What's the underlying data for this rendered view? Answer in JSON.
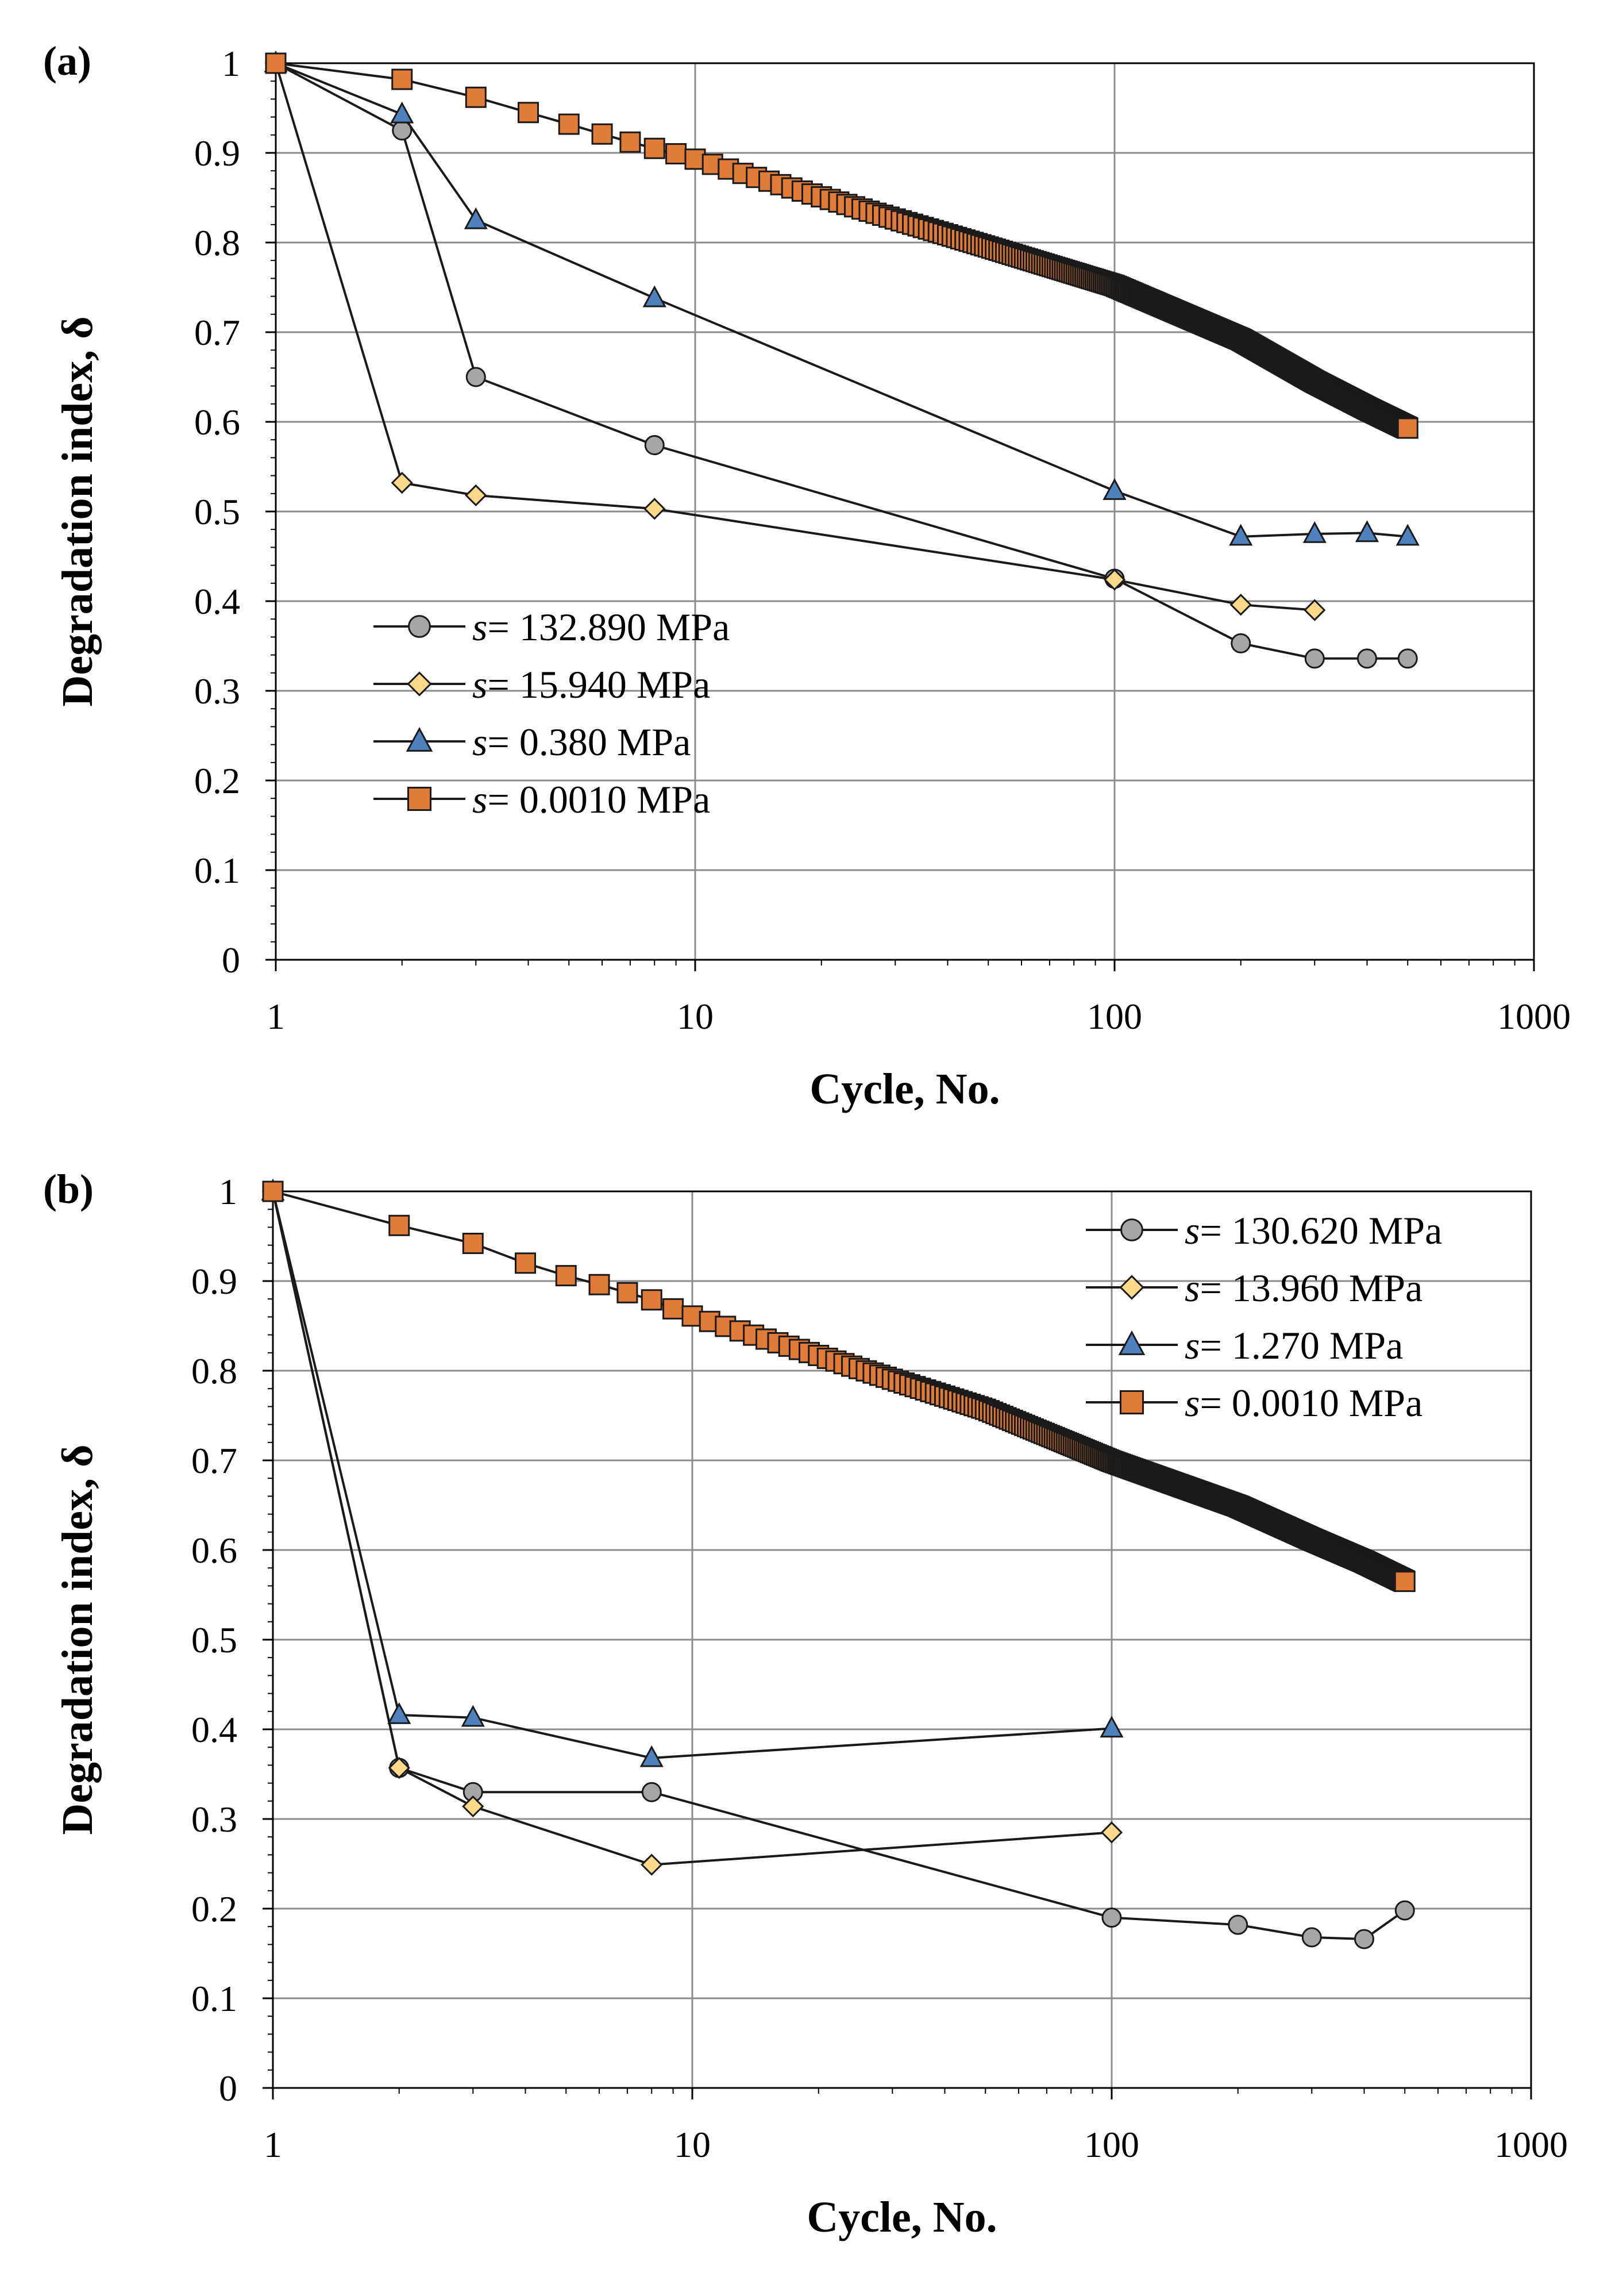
{
  "figure": {
    "colors": {
      "grid": "#8c8c8c",
      "axis": "#000000",
      "line": "#1a1a1a",
      "circle": "#a6a6a6",
      "diamond": "#ffd98a",
      "triangle": "#4f81bd",
      "square": "#e07b39"
    }
  },
  "chart_data": [
    {
      "panel_label": "(a)",
      "type": "line",
      "xscale": "log",
      "xlim": [
        1,
        1000
      ],
      "ylim": [
        0,
        1
      ],
      "xticks": [
        "1",
        "10",
        "100",
        "1000"
      ],
      "yticks": [
        "0",
        "0.1",
        "0.2",
        "0.3",
        "0.4",
        "0.5",
        "0.6",
        "0.7",
        "0.8",
        "0.9",
        "1"
      ],
      "xlabel": "Cycle, No.",
      "ylabel": "Degradation index, δ",
      "grid": true,
      "legend_position": "lower-left",
      "series": [
        {
          "name": "s= 132.890 MPa",
          "symbol": "s",
          "label_value": "= 132.890 MPa",
          "marker": "circle",
          "x": [
            1,
            2,
            3,
            8,
            100,
            200,
            300,
            400,
            500
          ],
          "y": [
            1.0,
            0.925,
            0.65,
            0.574,
            0.425,
            0.353,
            0.336,
            0.336,
            0.336
          ]
        },
        {
          "name": "s= 15.940 MPa",
          "symbol": "s",
          "label_value": "= 15.940 MPa",
          "marker": "diamond",
          "x": [
            1,
            2,
            3,
            8,
            100,
            200,
            300
          ],
          "y": [
            1.0,
            0.532,
            0.518,
            0.503,
            0.424,
            0.396,
            0.39
          ]
        },
        {
          "name": "s= 0.380 MPa",
          "symbol": "s",
          "label_value": "= 0.380  MPa",
          "marker": "triangle",
          "x": [
            1,
            2,
            3,
            8,
            100,
            200,
            300,
            400,
            500
          ],
          "y": [
            1.0,
            0.943,
            0.825,
            0.738,
            0.523,
            0.472,
            0.475,
            0.476,
            0.472
          ]
        },
        {
          "name": "s= 0.0010 MPa",
          "symbol": "s",
          "label_value": "= 0.0010 MPa",
          "marker": "square",
          "x": [
            1,
            2,
            3,
            4,
            5,
            6,
            7,
            8,
            9,
            10,
            20,
            50,
            100,
            200,
            300,
            400,
            500
          ],
          "y": [
            1.0,
            0.982,
            0.962,
            0.945,
            0.932,
            0.921,
            0.912,
            0.905,
            0.899,
            0.893,
            0.851,
            0.795,
            0.752,
            0.692,
            0.645,
            0.615,
            0.593
          ]
        }
      ]
    },
    {
      "panel_label": "(b)",
      "type": "line",
      "xscale": "log",
      "xlim": [
        1,
        1000
      ],
      "ylim": [
        0,
        1
      ],
      "xticks": [
        "1",
        "10",
        "100",
        "1000"
      ],
      "yticks": [
        "0",
        "0.1",
        "0.2",
        "0.3",
        "0.4",
        "0.5",
        "0.6",
        "0.7",
        "0.8",
        "0.9",
        "1"
      ],
      "xlabel": "Cycle, No.",
      "ylabel": "Degradation index, δ",
      "grid": true,
      "legend_position": "top-right",
      "series": [
        {
          "name": "s= 130.620 MPa",
          "symbol": "s",
          "label_value": "= 130.620 MPa",
          "marker": "circle",
          "x": [
            1,
            2,
            3,
            8,
            100,
            200,
            300,
            400,
            500
          ],
          "y": [
            1.0,
            0.357,
            0.33,
            0.33,
            0.19,
            0.182,
            0.168,
            0.166,
            0.198
          ]
        },
        {
          "name": "s= 13.960 MPa",
          "symbol": "s",
          "label_value": "= 13.960 MPa",
          "marker": "diamond",
          "x": [
            1,
            2,
            3,
            8,
            100
          ],
          "y": [
            1.0,
            0.357,
            0.314,
            0.249,
            0.285
          ]
        },
        {
          "name": "s= 1.270 MPa",
          "symbol": "s",
          "label_value": "= 1.270  MPa",
          "marker": "triangle",
          "x": [
            1,
            2,
            3,
            8,
            100
          ],
          "y": [
            1.0,
            0.416,
            0.413,
            0.368,
            0.401
          ]
        },
        {
          "name": "s= 0.0010 MPa",
          "symbol": "s",
          "label_value": "= 0.0010 MPa",
          "marker": "square",
          "x": [
            1,
            2,
            3,
            4,
            5,
            6,
            7,
            8,
            9,
            10,
            20,
            50,
            100,
            200,
            300,
            400,
            500
          ],
          "y": [
            1.0,
            0.962,
            0.942,
            0.92,
            0.906,
            0.896,
            0.887,
            0.879,
            0.869,
            0.861,
            0.817,
            0.757,
            0.699,
            0.649,
            0.612,
            0.587,
            0.565
          ]
        }
      ]
    }
  ]
}
